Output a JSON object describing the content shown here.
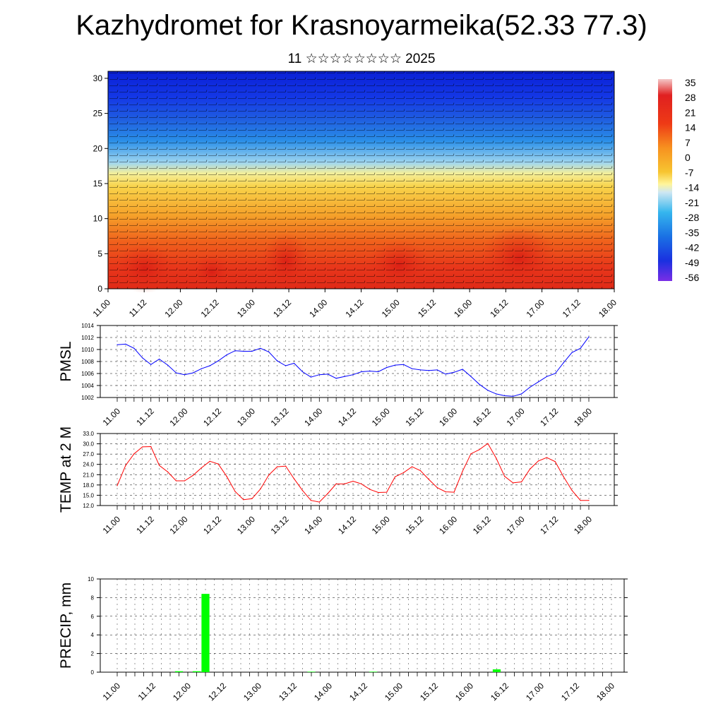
{
  "title": "Kazhydromet for Krasnoyarmeika(52.33 77.3)",
  "subtitle": "11 ☆☆☆☆☆☆☆☆ 2025",
  "chart_data": [
    {
      "type": "heatmap",
      "title": "",
      "xlabel": "",
      "ylabel": "",
      "x_ticks": [
        "11.00",
        "11.12",
        "12.00",
        "12.12",
        "13.00",
        "13.12",
        "14.00",
        "14.12",
        "15.00",
        "15.12",
        "16.00",
        "16.12",
        "17.00",
        "17.12",
        "18.00"
      ],
      "y_ticks": [
        0,
        5,
        10,
        15,
        20,
        25,
        30
      ],
      "ylim": [
        0,
        31
      ],
      "colorbar_labels": [
        "35",
        "28",
        "21",
        "14",
        "7",
        "0",
        "-7",
        "-14",
        "-21",
        "-28",
        "-35",
        "-42",
        "-49",
        "-56"
      ],
      "description_values": "temperature field with wind barbs; warm (red) near surface, cold (blue) aloft"
    },
    {
      "type": "line",
      "ylabel": "PMSL",
      "ylim": [
        1002,
        1014
      ],
      "y_ticks": [
        "1002",
        "1004",
        "1006",
        "1008",
        "1010",
        "1012",
        "1014"
      ],
      "x_ticks": [
        "11.00",
        "11.12",
        "12.00",
        "12.12",
        "13.00",
        "13.12",
        "14.00",
        "14.12",
        "15.00",
        "15.12",
        "16.00",
        "16.12",
        "17.00",
        "17.12",
        "18.00"
      ],
      "color": "#0000ff",
      "values": [
        1010.8,
        1010.9,
        1010.2,
        1008.6,
        1007.5,
        1008.4,
        1007.4,
        1006.1,
        1005.8,
        1006.1,
        1006.8,
        1007.3,
        1008.1,
        1009.1,
        1009.8,
        1009.7,
        1009.7,
        1010.2,
        1009.6,
        1008.1,
        1007.3,
        1007.7,
        1006.3,
        1005.4,
        1005.8,
        1005.9,
        1005.2,
        1005.5,
        1005.8,
        1006.3,
        1006.4,
        1006.3,
        1007.0,
        1007.4,
        1007.5,
        1006.8,
        1006.6,
        1006.5,
        1006.6,
        1005.9,
        1006.2,
        1006.7,
        1005.5,
        1004.2,
        1003.2,
        1002.6,
        1002.3,
        1002.2,
        1002.6,
        1003.7,
        1004.6,
        1005.5,
        1006.0,
        1007.8,
        1009.5,
        1010.2,
        1012.1
      ]
    },
    {
      "type": "line",
      "ylabel": "TEMP at 2 M",
      "ylim": [
        12,
        33
      ],
      "y_ticks": [
        "12.0",
        "15.0",
        "18.0",
        "21.0",
        "24.0",
        "27.0",
        "30.0",
        "33.0"
      ],
      "x_ticks": [
        "11.00",
        "11.12",
        "12.00",
        "12.12",
        "13.00",
        "13.12",
        "14.00",
        "14.12",
        "15.00",
        "15.12",
        "16.00",
        "16.12",
        "17.00",
        "17.12",
        "18.00"
      ],
      "color": "#ff0000",
      "values": [
        17.8,
        23.7,
        27.1,
        29.1,
        29.2,
        23.7,
        21.8,
        19.2,
        19.2,
        20.8,
        23.0,
        24.9,
        24.1,
        20.5,
        16.1,
        13.7,
        14.0,
        16.8,
        20.9,
        23.3,
        23.5,
        19.8,
        16.4,
        13.5,
        13.0,
        15.5,
        18.3,
        18.3,
        19.1,
        18.3,
        16.7,
        15.8,
        15.9,
        20.4,
        21.6,
        23.3,
        22.2,
        19.6,
        17.2,
        16.0,
        15.9,
        22.0,
        27.1,
        28.3,
        30.1,
        25.8,
        20.5,
        18.6,
        18.9,
        22.6,
        25.0,
        26.0,
        24.8,
        20.4,
        16.4,
        13.5,
        13.5
      ]
    },
    {
      "type": "bar",
      "ylabel": "PRECIP, mm",
      "ylim": [
        0,
        10
      ],
      "y_ticks": [
        "0",
        "2",
        "4",
        "6",
        "8",
        "10"
      ],
      "x_ticks": [
        "11.00",
        "11.12",
        "12.00",
        "12.12",
        "13.00",
        "13.12",
        "14.00",
        "14.12",
        "15.00",
        "15.12",
        "16.00",
        "16.12",
        "17.00",
        "17.12",
        "18.00"
      ],
      "color": "#00ff00",
      "values": [
        0,
        0,
        0,
        0,
        0,
        0,
        0,
        0.1,
        0,
        0.1,
        8.4,
        0,
        0,
        0,
        0,
        0,
        0,
        0,
        0,
        0,
        0,
        0,
        0.05,
        0,
        0,
        0,
        0,
        0,
        0,
        0.05,
        0,
        0,
        0,
        0,
        0,
        0,
        0,
        0,
        0,
        0,
        0,
        0,
        0,
        0.3,
        0,
        0,
        0,
        0,
        0,
        0,
        0,
        0,
        0,
        0,
        0,
        0,
        0
      ]
    }
  ]
}
